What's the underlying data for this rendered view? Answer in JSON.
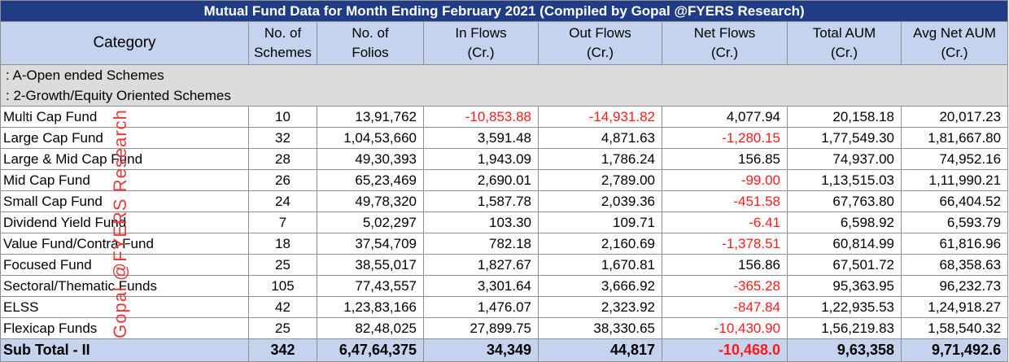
{
  "title": "Mutual Fund Data for Month Ending  February 2021 (Compiled by Gopal @FYERS Research)",
  "headers": {
    "category": "Category",
    "schemes": [
      "No. of",
      "Schemes"
    ],
    "folios": [
      "No. of",
      "Folios"
    ],
    "inflows": [
      "In Flows",
      "(Cr.)"
    ],
    "outflows": [
      "Out Flows",
      "(Cr.)"
    ],
    "netflows": [
      "Net Flows",
      "(Cr.)"
    ],
    "aum": [
      "Total AUM",
      "(Cr.)"
    ],
    "avg_aum": [
      "Avg Net AUM",
      "(Cr.)"
    ]
  },
  "sections": [
    ": A-Open ended Schemes",
    ": 2-Growth/Equity Oriented Schemes"
  ],
  "rows": [
    {
      "category": "Multi Cap Fund",
      "schemes": "10",
      "folios": "13,91,762",
      "inflows": "-10,853.88",
      "outflows": "-14,931.82",
      "netflows": "4,077.94",
      "aum": "20,158.18",
      "avg_aum": "20,017.23"
    },
    {
      "category": "Large Cap Fund",
      "schemes": "32",
      "folios": "1,04,53,660",
      "inflows": "3,591.48",
      "outflows": "4,871.63",
      "netflows": "-1,280.15",
      "aum": "1,77,549.30",
      "avg_aum": "1,81,667.80"
    },
    {
      "category": "Large & Mid Cap Fund",
      "schemes": "28",
      "folios": "49,30,393",
      "inflows": "1,943.09",
      "outflows": "1,786.24",
      "netflows": "156.85",
      "aum": "74,937.00",
      "avg_aum": "74,952.16"
    },
    {
      "category": "Mid Cap Fund",
      "schemes": "26",
      "folios": "65,23,469",
      "inflows": "2,690.01",
      "outflows": "2,789.00",
      "netflows": "-99.00",
      "aum": "1,13,515.03",
      "avg_aum": "1,11,990.21"
    },
    {
      "category": "Small Cap Fund",
      "schemes": "24",
      "folios": "49,78,320",
      "inflows": "1,587.78",
      "outflows": "2,039.36",
      "netflows": "-451.58",
      "aum": "67,763.80",
      "avg_aum": "66,404.52"
    },
    {
      "category": "Dividend Yield Fund",
      "schemes": "7",
      "folios": "5,02,297",
      "inflows": "103.30",
      "outflows": "109.71",
      "netflows": "-6.41",
      "aum": "6,598.92",
      "avg_aum": "6,593.79"
    },
    {
      "category": "Value Fund/Contra Fund",
      "schemes": "18",
      "folios": "37,54,709",
      "inflows": "782.18",
      "outflows": "2,160.69",
      "netflows": "-1,378.51",
      "aum": "60,814.99",
      "avg_aum": "61,816.96"
    },
    {
      "category": "Focused Fund",
      "schemes": "25",
      "folios": "38,55,017",
      "inflows": "1,827.67",
      "outflows": "1,670.81",
      "netflows": "156.86",
      "aum": "67,501.72",
      "avg_aum": "68,358.63"
    },
    {
      "category": "Sectoral/Thematic Funds",
      "schemes": "105",
      "folios": "77,43,557",
      "inflows": "3,301.64",
      "outflows": "3,666.92",
      "netflows": "-365.28",
      "aum": "95,363.95",
      "avg_aum": "96,232.73"
    },
    {
      "category": "ELSS",
      "schemes": "42",
      "folios": "1,23,83,166",
      "inflows": "1,476.07",
      "outflows": "2,323.92",
      "netflows": "-847.84",
      "aum": "1,22,935.53",
      "avg_aum": "1,24,918.27"
    },
    {
      "category": "Flexicap Funds",
      "schemes": "25",
      "folios": "82,48,025",
      "inflows": "27,899.75",
      "outflows": "38,330.65",
      "netflows": "-10,430.90",
      "aum": "1,56,219.83",
      "avg_aum": "1,58,540.32"
    }
  ],
  "total": {
    "category": "Sub Total - II",
    "schemes": "342",
    "folios": "6,47,64,375",
    "inflows": "34,349",
    "outflows": "44,817",
    "netflows": "-10,468.0",
    "aum": "9,63,358",
    "avg_aum": "9,71,492.6"
  },
  "watermark": "Gopal @FYERS Research",
  "colors": {
    "title_bg": "#1f3c84",
    "header_bg": "#c5d3ee",
    "section_bg": "#dcdcdc",
    "negative": "#ff1a1a",
    "watermark": "#e43b3b"
  }
}
